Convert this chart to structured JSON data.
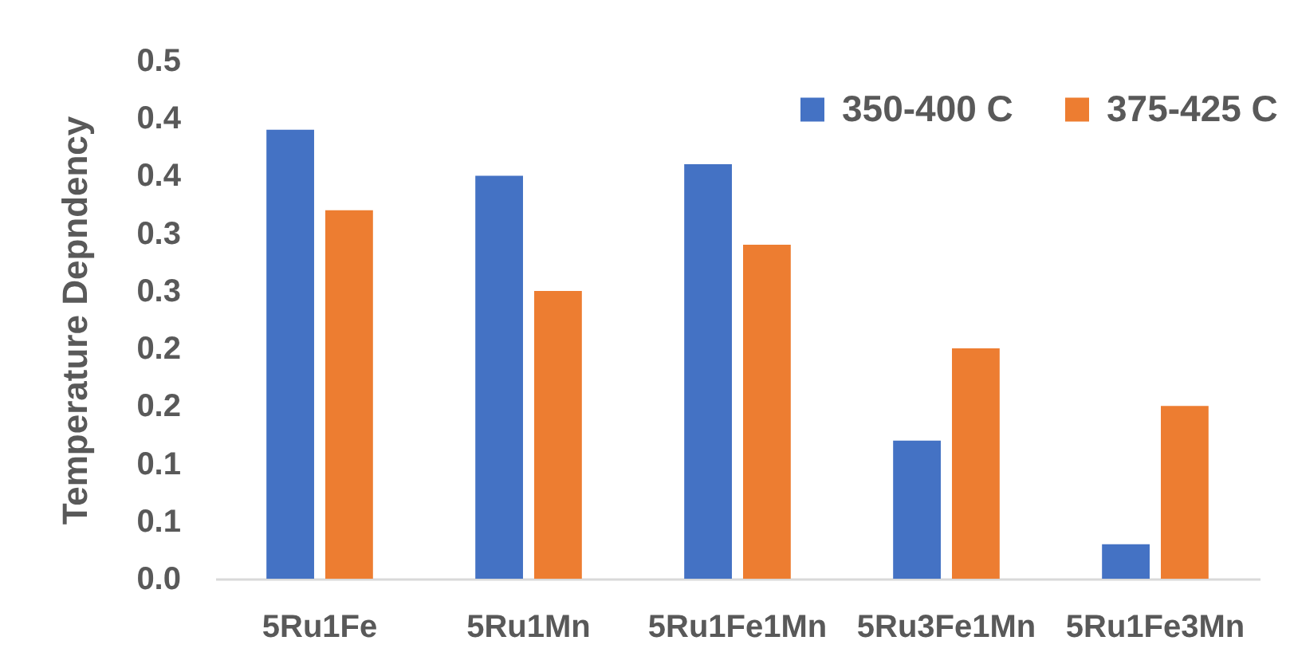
{
  "chart_data": {
    "type": "bar",
    "ylabel": "Temperature Depndency",
    "categories": [
      "5Ru1Fe",
      "5Ru1Mn",
      "5Ru1Fe1Mn",
      "5Ru3Fe1Mn",
      "5Ru1Fe3Mn"
    ],
    "series": [
      {
        "name": "350-400 C",
        "color": "#4472c4",
        "values": [
          0.39,
          0.35,
          0.36,
          0.12,
          0.03
        ]
      },
      {
        "name": "375-425 C",
        "color": "#ed7d31",
        "values": [
          0.32,
          0.25,
          0.29,
          0.2,
          0.15
        ]
      }
    ],
    "ylim": [
      0,
      0.45
    ],
    "yticks": [
      {
        "value": 0,
        "label": "0.0"
      },
      {
        "value": 0.05,
        "label": "0.1"
      },
      {
        "value": 0.1,
        "label": "0.1"
      },
      {
        "value": 0.15,
        "label": "0.2"
      },
      {
        "value": 0.2,
        "label": "0.2"
      },
      {
        "value": 0.25,
        "label": "0.3"
      },
      {
        "value": 0.3,
        "label": "0.3"
      },
      {
        "value": 0.35,
        "label": "0.4"
      },
      {
        "value": 0.4,
        "label": "0.4"
      },
      {
        "value": 0.45,
        "label": "0.5"
      }
    ],
    "grid": false,
    "legend": "top right"
  }
}
